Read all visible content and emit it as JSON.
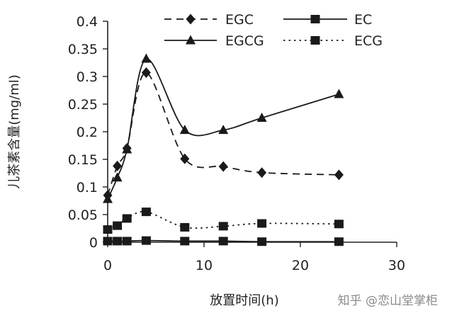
{
  "chart_data": {
    "type": "line",
    "title": "",
    "xlabel": "放置时间(h)",
    "ylabel": "儿茶素含量(mg/ml)",
    "xlim": [
      0,
      30
    ],
    "ylim": [
      0,
      0.4
    ],
    "x_ticks": [
      "0",
      "10",
      "20",
      "30"
    ],
    "y_ticks": [
      "0",
      "0.05",
      "0.1",
      "0.15",
      "0.2",
      "0.25",
      "0.3",
      "0.35",
      "0.4"
    ],
    "grid": false,
    "legend_position": "top-right",
    "series": [
      {
        "name": "EGC",
        "marker": "diamond",
        "line_style": "dashed",
        "color": "#1a1a1a",
        "x": [
          0,
          1,
          2,
          4,
          8,
          12,
          16,
          24
        ],
        "y": [
          0.085,
          0.138,
          0.17,
          0.307,
          0.151,
          0.137,
          0.126,
          0.122
        ]
      },
      {
        "name": "EC",
        "marker": "square",
        "line_style": "solid",
        "color": "#1a1a1a",
        "x": [
          0,
          1,
          2,
          4,
          8,
          12,
          16,
          24
        ],
        "y": [
          0.002,
          0.002,
          0.002,
          0.003,
          0.002,
          0.002,
          0.001,
          0.001
        ]
      },
      {
        "name": "EGCG",
        "marker": "triangle",
        "line_style": "solid",
        "color": "#1a1a1a",
        "x": [
          0,
          1,
          2,
          4,
          8,
          12,
          16,
          24
        ],
        "y": [
          0.078,
          0.117,
          0.168,
          0.332,
          0.203,
          0.203,
          0.225,
          0.268
        ]
      },
      {
        "name": "ECG",
        "marker": "square",
        "line_style": "dotted",
        "color": "#1a1a1a",
        "x": [
          0,
          1,
          2,
          4,
          8,
          12,
          16,
          24
        ],
        "y": [
          0.023,
          0.03,
          0.043,
          0.055,
          0.027,
          0.029,
          0.034,
          0.033
        ]
      }
    ]
  },
  "watermark": "知乎 @恋山堂掌柜"
}
